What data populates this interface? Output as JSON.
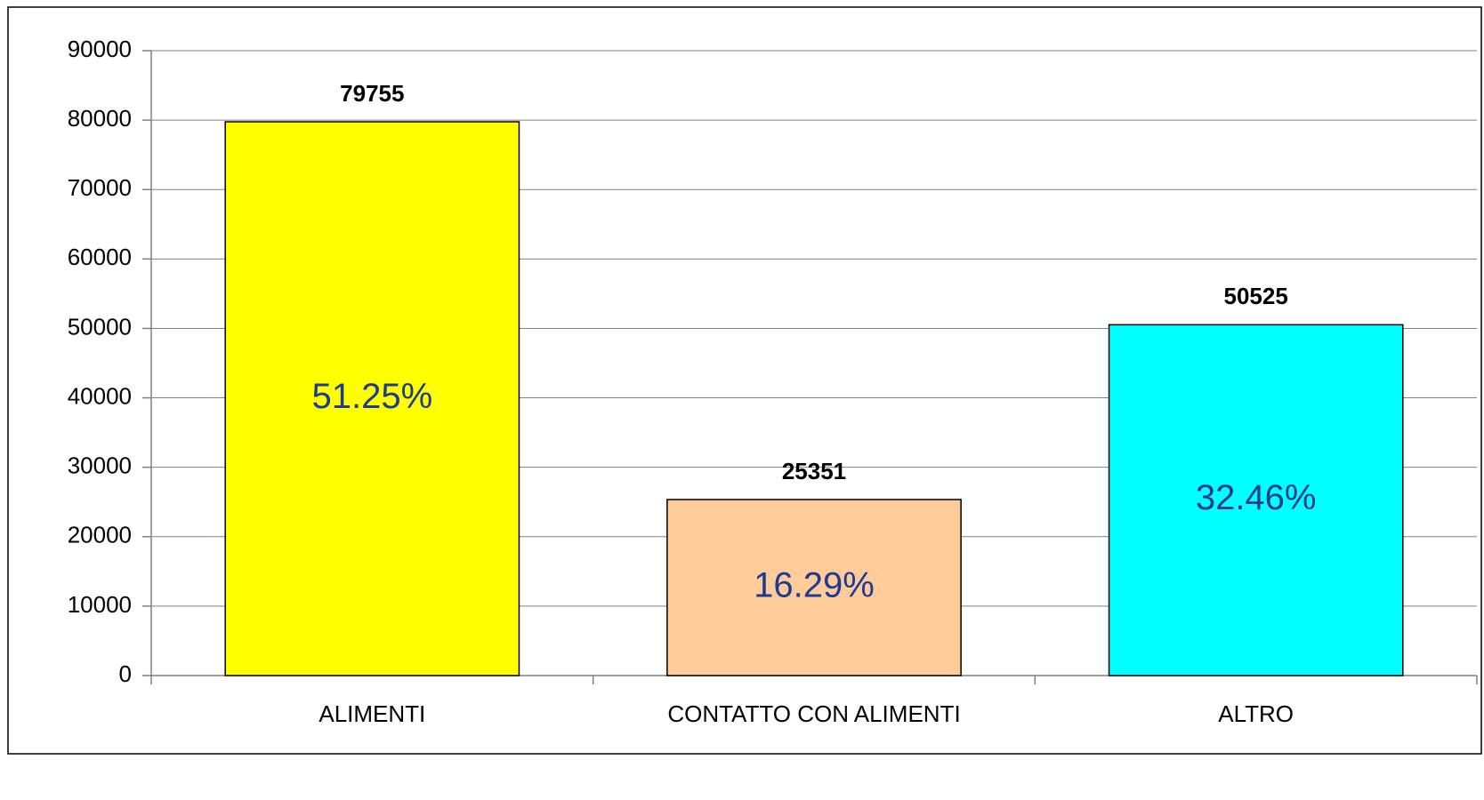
{
  "chart_data": {
    "type": "bar",
    "categories": [
      "ALIMENTI",
      "CONTATTO CON ALIMENTI",
      "ALTRO"
    ],
    "values": [
      79755,
      25351,
      50525
    ],
    "colors": [
      "#ffff00",
      "#ffcc99",
      "#00ffff"
    ],
    "shares": [
      51.25,
      16.29,
      32.46
    ],
    "share_labels": [
      "51.25%",
      "16.29%",
      "32.46%"
    ],
    "ylim": [
      0,
      90000
    ],
    "yticks": [
      0,
      10000,
      20000,
      30000,
      40000,
      50000,
      60000,
      70000,
      80000,
      90000
    ],
    "grid": true
  }
}
